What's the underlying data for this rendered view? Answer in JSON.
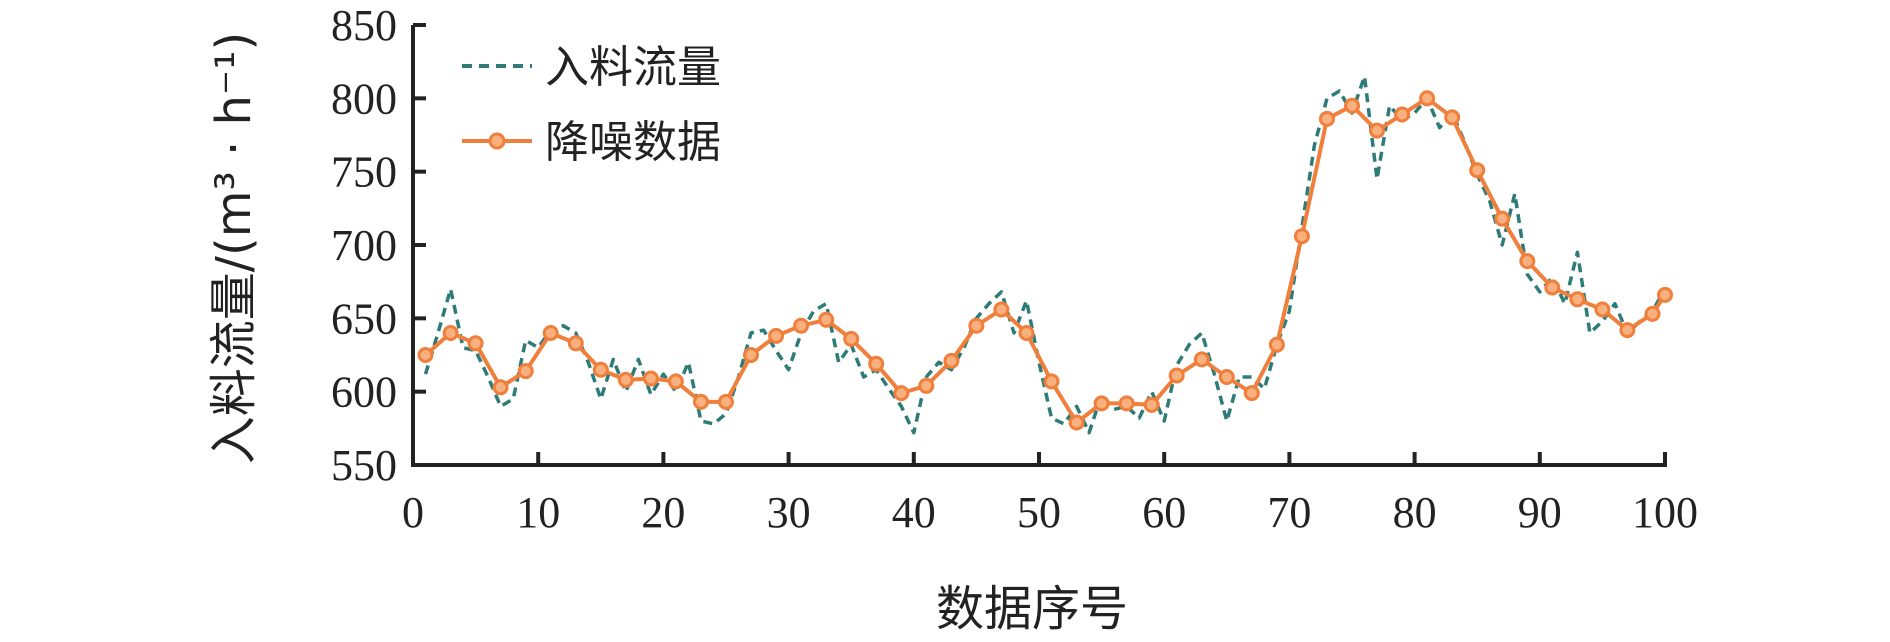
{
  "chart_data": {
    "type": "line",
    "xlabel": "数据序号",
    "ylabel": "入料流量/(m³ · h⁻¹)",
    "xlim": [
      0,
      100
    ],
    "ylim": [
      550,
      850
    ],
    "x_ticks": [
      0,
      10,
      20,
      30,
      40,
      50,
      60,
      70,
      80,
      90,
      100
    ],
    "y_ticks": [
      550,
      600,
      650,
      700,
      750,
      800,
      850
    ],
    "grid": false,
    "legend_position": "top-left",
    "series": [
      {
        "name": "入料流量",
        "color": "#2e7b78",
        "style": "dashed",
        "x": [
          1,
          2,
          3,
          4,
          5,
          6,
          7,
          8,
          9,
          10,
          11,
          12,
          13,
          14,
          15,
          16,
          17,
          18,
          19,
          20,
          21,
          22,
          23,
          24,
          25,
          26,
          27,
          28,
          29,
          30,
          31,
          32,
          33,
          34,
          35,
          36,
          37,
          38,
          39,
          40,
          41,
          42,
          43,
          44,
          45,
          46,
          47,
          48,
          49,
          50,
          51,
          52,
          53,
          54,
          55,
          56,
          57,
          58,
          59,
          60,
          61,
          62,
          63,
          64,
          65,
          66,
          67,
          68,
          69,
          70,
          71,
          72,
          73,
          74,
          75,
          76,
          77,
          78,
          79,
          80,
          81,
          82,
          83,
          84,
          85,
          86,
          87,
          88,
          89,
          90,
          91,
          92,
          93,
          94,
          95,
          96,
          97,
          98,
          99,
          100
        ],
        "values": [
          612,
          640,
          670,
          630,
          628,
          610,
          590,
          595,
          635,
          630,
          642,
          645,
          640,
          620,
          595,
          622,
          600,
          622,
          598,
          612,
          600,
          620,
          580,
          578,
          585,
          610,
          640,
          642,
          628,
          615,
          640,
          655,
          660,
          620,
          632,
          610,
          615,
          602,
          590,
          572,
          610,
          620,
          615,
          630,
          650,
          660,
          668,
          640,
          662,
          620,
          582,
          578,
          590,
          572,
          598,
          588,
          590,
          582,
          600,
          580,
          618,
          632,
          640,
          612,
          580,
          610,
          610,
          602,
          632,
          655,
          712,
          768,
          800,
          805,
          790,
          815,
          745,
          795,
          785,
          790,
          800,
          780,
          790,
          770,
          748,
          730,
          700,
          735,
          680,
          668,
          678,
          660,
          695,
          640,
          648,
          660,
          640,
          648,
          655,
          670
        ]
      },
      {
        "name": "降噪数据",
        "color": "#f07f3c",
        "style": "solid",
        "marker": "circle",
        "x": [
          1,
          3,
          5,
          7,
          9,
          11,
          13,
          15,
          17,
          19,
          21,
          23,
          25,
          27,
          29,
          31,
          33,
          35,
          37,
          39,
          41,
          43,
          45,
          47,
          49,
          51,
          53,
          55,
          57,
          59,
          61,
          63,
          65,
          67,
          69,
          71,
          73,
          75,
          77,
          79,
          81,
          83,
          85,
          87,
          89,
          91,
          93,
          95,
          97,
          99,
          100
        ],
        "values": [
          625,
          640,
          633,
          603,
          614,
          640,
          633,
          615,
          608,
          609,
          607,
          593,
          593,
          625,
          638,
          645,
          649,
          636,
          619,
          599,
          604,
          621,
          645,
          656,
          640,
          607,
          579,
          592,
          592,
          591,
          611,
          622,
          610,
          599,
          632,
          706,
          786,
          795,
          778,
          789,
          800,
          787,
          751,
          718,
          689,
          671,
          663,
          656,
          642,
          653,
          666
        ]
      }
    ]
  }
}
